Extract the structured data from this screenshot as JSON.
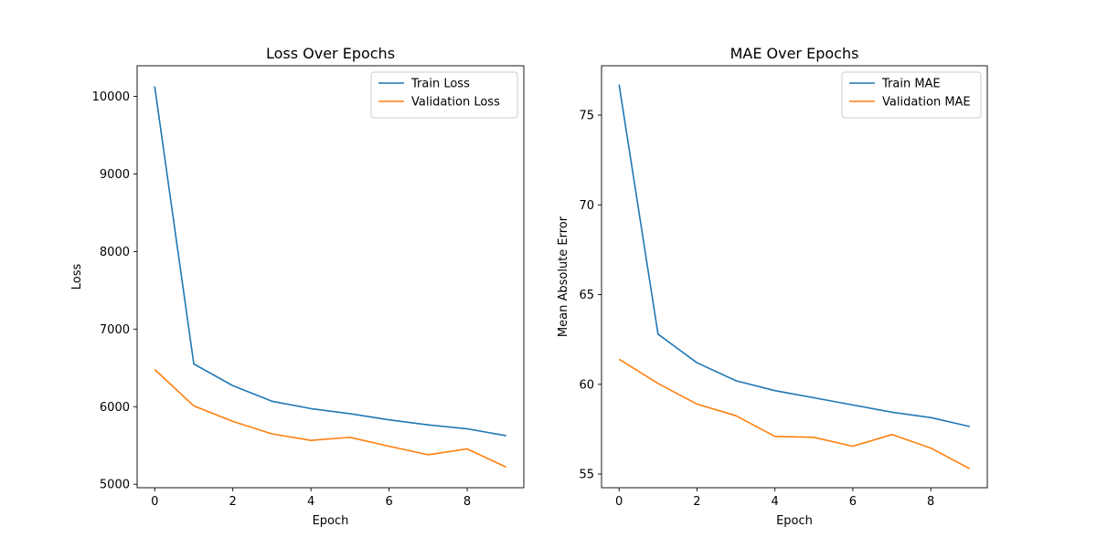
{
  "chart_data": [
    {
      "type": "line",
      "title": "Loss Over Epochs",
      "xlabel": "Epoch",
      "ylabel": "Loss",
      "xlim": [
        -0.45,
        9.45
      ],
      "ylim": [
        4955,
        10395
      ],
      "xticks": [
        0,
        2,
        4,
        6,
        8
      ],
      "yticks": [
        5000,
        6000,
        7000,
        8000,
        9000,
        10000
      ],
      "legend_position": "upper-right",
      "grid": false,
      "x": [
        0,
        1,
        2,
        3,
        4,
        5,
        6,
        7,
        8,
        9
      ],
      "series": [
        {
          "name": "Train Loss",
          "color": "#1f77b4",
          "values": [
            10130,
            6550,
            6270,
            6070,
            5975,
            5910,
            5830,
            5765,
            5715,
            5625
          ]
        },
        {
          "name": "Validation Loss",
          "color": "#ff7f0e",
          "values": [
            6480,
            6010,
            5810,
            5650,
            5565,
            5605,
            5490,
            5380,
            5455,
            5220
          ]
        }
      ]
    },
    {
      "type": "line",
      "title": "MAE Over Epochs",
      "xlabel": "Epoch",
      "ylabel": "Mean Absolute Error",
      "xlim": [
        -0.45,
        9.45
      ],
      "ylim": [
        54.24,
        77.75
      ],
      "xticks": [
        0,
        2,
        4,
        6,
        8
      ],
      "yticks": [
        55,
        60,
        65,
        70,
        75
      ],
      "legend_position": "upper-right",
      "grid": false,
      "x": [
        0,
        1,
        2,
        3,
        4,
        5,
        6,
        7,
        8,
        9
      ],
      "series": [
        {
          "name": "Train MAE",
          "color": "#1f77b4",
          "values": [
            76.7,
            62.8,
            61.2,
            60.2,
            59.65,
            59.25,
            58.85,
            58.45,
            58.15,
            57.65
          ]
        },
        {
          "name": "Validation MAE",
          "color": "#ff7f0e",
          "values": [
            61.4,
            60.05,
            58.9,
            58.25,
            57.1,
            57.05,
            56.55,
            57.2,
            56.45,
            55.3
          ]
        }
      ]
    }
  ]
}
